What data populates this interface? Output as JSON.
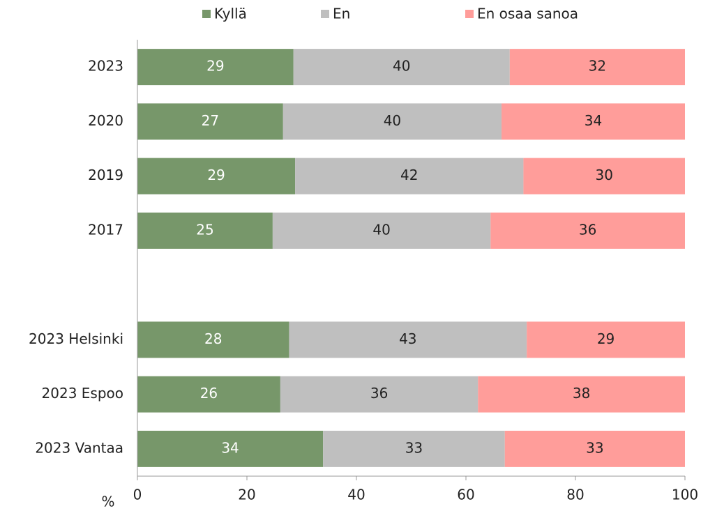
{
  "chart_data": {
    "type": "stacked_bar_horizontal",
    "categories": [
      "2023",
      "2020",
      "2019",
      "2017",
      null,
      "2023 Helsinki",
      "2023 Espoo",
      "2023 Vantaa"
    ],
    "series": [
      {
        "name": "Kyllä",
        "color": "#77976a",
        "values": [
          28.5,
          26.6,
          28.8,
          24.7,
          null,
          27.7,
          26.1,
          33.9
        ],
        "value_labels": [
          "29",
          "27",
          "29",
          "25",
          null,
          "28",
          "26",
          "34"
        ]
      },
      {
        "name": "En",
        "color": "#bfbfbf",
        "values": [
          39.5,
          39.9,
          41.7,
          39.8,
          null,
          43.4,
          36.1,
          33.2
        ],
        "value_labels": [
          "40",
          "40",
          "42",
          "40",
          null,
          "43",
          "36",
          "33"
        ]
      },
      {
        "name": "En osaa sanoa",
        "color": "#ff9d9a",
        "values": [
          32.0,
          33.5,
          29.5,
          35.5,
          null,
          28.9,
          37.8,
          32.9
        ],
        "value_labels": [
          "32",
          "34",
          "30",
          "36",
          null,
          "29",
          "38",
          "33"
        ]
      }
    ],
    "xlim": [
      0,
      100
    ],
    "xticks": [
      0,
      20,
      40,
      60,
      80,
      100
    ],
    "xlabel": "%",
    "legend": "top"
  }
}
